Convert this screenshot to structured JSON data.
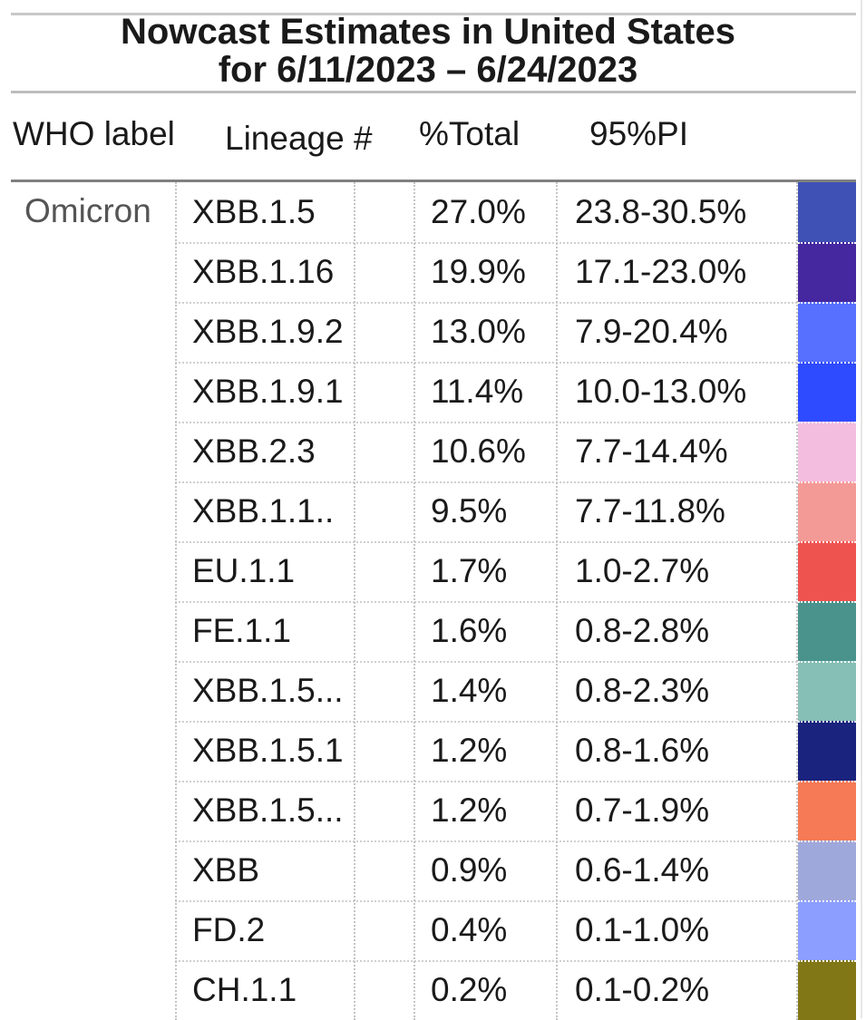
{
  "title_line1": "Nowcast Estimates in United States",
  "title_line2": "for 6/11/2023 – 6/24/2023",
  "headers": {
    "who": "WHO label",
    "lineage": "Lineage #",
    "pct": "%Total",
    "pi": "95%PI"
  },
  "who_label": "Omicron",
  "chart_data": {
    "type": "table",
    "title": "Nowcast Estimates in United States for 6/11/2023 – 6/24/2023",
    "columns": [
      "WHO label",
      "Lineage #",
      "%Total",
      "95%PI"
    ],
    "rows": [
      {
        "who": "Omicron",
        "lineage": "XBB.1.5",
        "pct": "27.0%",
        "pi": "23.8-30.5%",
        "color": "#3f51b5",
        "value": 27.0
      },
      {
        "who": "",
        "lineage": "XBB.1.16",
        "pct": "19.9%",
        "pi": "17.1-23.0%",
        "color": "#4527a0",
        "value": 19.9
      },
      {
        "who": "",
        "lineage": "XBB.1.9.2",
        "pct": "13.0%",
        "pi": "7.9-20.4%",
        "color": "#5870ff",
        "value": 13.0
      },
      {
        "who": "",
        "lineage": "XBB.1.9.1",
        "pct": "11.4%",
        "pi": "10.0-13.0%",
        "color": "#2e4bff",
        "value": 11.4
      },
      {
        "who": "",
        "lineage": "XBB.2.3",
        "pct": "10.6%",
        "pi": "7.7-14.4%",
        "color": "#f3bde0",
        "value": 10.6
      },
      {
        "who": "",
        "lineage": "XBB.1.1..",
        "pct": "9.5%",
        "pi": "7.7-11.8%",
        "color": "#f49a96",
        "value": 9.5
      },
      {
        "who": "",
        "lineage": "EU.1.1",
        "pct": "1.7%",
        "pi": "1.0-2.7%",
        "color": "#ef5350",
        "value": 1.7
      },
      {
        "who": "",
        "lineage": "FE.1.1",
        "pct": "1.6%",
        "pi": "0.8-2.8%",
        "color": "#4a938d",
        "value": 1.6
      },
      {
        "who": "",
        "lineage": "XBB.1.5...",
        "pct": "1.4%",
        "pi": "0.8-2.3%",
        "color": "#86bfb5",
        "value": 1.4
      },
      {
        "who": "",
        "lineage": "XBB.1.5.1",
        "pct": "1.2%",
        "pi": "0.8-1.6%",
        "color": "#1a237e",
        "value": 1.2
      },
      {
        "who": "",
        "lineage": "XBB.1.5...",
        "pct": "1.2%",
        "pi": "0.7-1.9%",
        "color": "#f57a55",
        "value": 1.2
      },
      {
        "who": "",
        "lineage": "XBB",
        "pct": "0.9%",
        "pi": "0.6-1.4%",
        "color": "#9fa8da",
        "value": 0.9
      },
      {
        "who": "",
        "lineage": "FD.2",
        "pct": "0.4%",
        "pi": "0.1-1.0%",
        "color": "#8c9eff",
        "value": 0.4
      },
      {
        "who": "",
        "lineage": "CH.1.1",
        "pct": "0.2%",
        "pi": "0.1-0.2%",
        "color": "#827717",
        "value": 0.2
      }
    ]
  }
}
